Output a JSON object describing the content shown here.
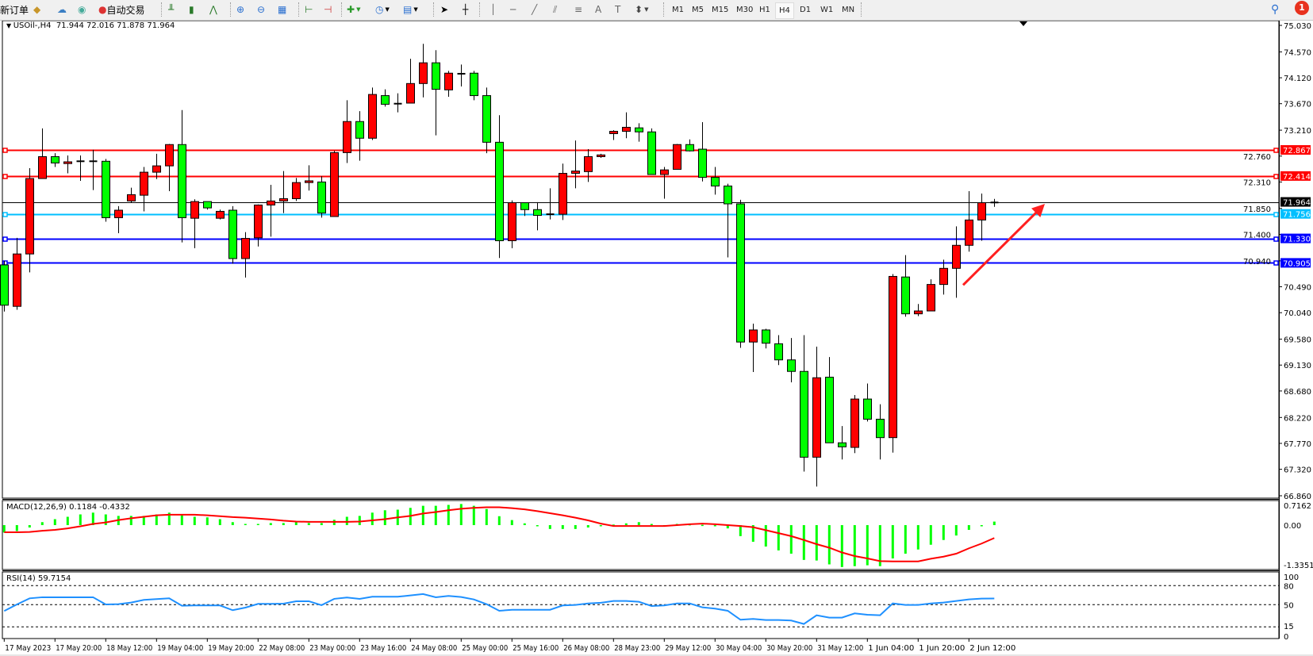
{
  "toolbar": {
    "new_order": "新订单",
    "auto_trading": "自动交易",
    "timeframes": [
      "M1",
      "M5",
      "M15",
      "M30",
      "H1",
      "H4",
      "D1",
      "W1",
      "MN"
    ],
    "active_timeframe": "H4",
    "notification_count": "1",
    "icons": [
      "metaeditor-icon",
      "market-watch-icon",
      "signals-icon",
      "bar-chart-icon",
      "candlestick-icon",
      "line-chart-icon",
      "zoom-in-icon",
      "zoom-out-icon",
      "tile-windows-icon",
      "auto-scroll-icon",
      "chart-shift-icon",
      "new-chart-icon",
      "periods-icon",
      "templates-icon",
      "cursor-icon",
      "crosshair-icon",
      "vertical-line-icon",
      "horizontal-line-icon",
      "trendline-icon",
      "fibonacci-icon",
      "fibo-fan-icon",
      "text-icon",
      "text-label-icon",
      "arrows-icon",
      "search-icon",
      "notification-icon"
    ]
  },
  "chart": {
    "header": "USOil-,H4  71.944 72.016 71.878 71.964",
    "macd_label": "MACD(12,26,9) 0.1184 -0.4332",
    "rsi_label": "RSI(14) 59.7154"
  },
  "chart_data": {
    "type": "candlestick",
    "symbol": "USOil-",
    "timeframe": "H4",
    "colors": {
      "up": "#FF0000",
      "down": "#00FF00",
      "macd_hist": "#00FF00",
      "macd_signal": "#FF0000",
      "rsi": "#1E90FF"
    },
    "price_ticks": [
      "75.030",
      "74.570",
      "74.120",
      "73.670",
      "73.210",
      "72.760",
      "72.310",
      "71.850",
      "71.400",
      "70.940",
      "70.490",
      "70.040",
      "69.580",
      "69.130",
      "68.680",
      "68.220",
      "67.770",
      "67.320",
      "66.860"
    ],
    "ylim": [
      66.86,
      75.03
    ],
    "time_labels": [
      "17 May 2023",
      "17 May 20:00",
      "18 May 12:00",
      "19 May 04:00",
      "19 May 20:00",
      "22 May 08:00",
      "23 May 00:00",
      "23 May 16:00",
      "24 May 08:00",
      "25 May 00:00",
      "25 May 16:00",
      "26 May 08:00",
      "28 May 23:00",
      "29 May 12:00",
      "30 May 04:00",
      "30 May 20:00",
      "31 May 12:00",
      "1 Jun 04:00",
      "1 Jun 20:00",
      "2 Jun 12:00"
    ],
    "levels": [
      {
        "price": "72.867",
        "color": "#FF0000"
      },
      {
        "price": "72.414",
        "color": "#FF0000"
      },
      {
        "price": "71.964",
        "color": "#000000"
      },
      {
        "price": "71.756",
        "color": "#00BFFF"
      },
      {
        "price": "71.330",
        "color": "#0000FF"
      },
      {
        "price": "70.905",
        "color": "#0000FF"
      }
    ],
    "ohlc": [
      [
        70.87,
        70.94,
        70.06,
        70.17
      ],
      [
        70.15,
        71.34,
        70.09,
        71.06
      ],
      [
        71.06,
        72.55,
        70.74,
        72.37
      ],
      [
        72.37,
        73.24,
        72.37,
        72.75
      ],
      [
        72.75,
        72.81,
        72.57,
        72.64
      ],
      [
        72.63,
        72.77,
        72.46,
        72.66
      ],
      [
        72.67,
        72.77,
        72.33,
        72.67
      ],
      [
        72.67,
        72.87,
        72.17,
        72.67
      ],
      [
        72.67,
        72.71,
        71.62,
        71.69
      ],
      [
        71.69,
        71.89,
        71.42,
        71.82
      ],
      [
        71.98,
        72.21,
        71.95,
        72.09
      ],
      [
        72.08,
        72.57,
        71.8,
        72.48
      ],
      [
        72.48,
        72.8,
        72.36,
        72.59
      ],
      [
        72.59,
        72.97,
        72.15,
        72.96
      ],
      [
        72.96,
        73.56,
        71.26,
        71.69
      ],
      [
        71.68,
        72.01,
        71.16,
        71.97
      ],
      [
        71.97,
        71.97,
        71.83,
        71.86
      ],
      [
        71.68,
        71.83,
        71.66,
        71.8
      ],
      [
        71.82,
        71.89,
        70.89,
        70.98
      ],
      [
        70.98,
        71.44,
        70.65,
        71.33
      ],
      [
        71.34,
        71.92,
        71.19,
        71.91
      ],
      [
        71.91,
        72.26,
        71.36,
        71.98
      ],
      [
        71.98,
        72.5,
        71.77,
        72.02
      ],
      [
        72.02,
        72.38,
        71.98,
        72.3
      ],
      [
        72.3,
        72.6,
        72.16,
        72.33
      ],
      [
        72.31,
        72.41,
        71.69,
        71.77
      ],
      [
        71.71,
        72.85,
        71.71,
        72.82
      ],
      [
        72.82,
        73.73,
        72.64,
        73.36
      ],
      [
        73.36,
        73.54,
        72.68,
        73.07
      ],
      [
        73.07,
        73.95,
        73.04,
        73.83
      ],
      [
        73.81,
        73.92,
        73.62,
        73.66
      ],
      [
        73.67,
        73.85,
        73.52,
        73.67
      ],
      [
        73.68,
        74.45,
        73.68,
        74.02
      ],
      [
        74.02,
        74.71,
        73.78,
        74.38
      ],
      [
        74.38,
        74.6,
        73.12,
        73.92
      ],
      [
        73.91,
        74.24,
        73.79,
        74.2
      ],
      [
        74.19,
        74.35,
        73.97,
        74.19
      ],
      [
        74.2,
        74.24,
        73.73,
        73.81
      ],
      [
        73.81,
        73.95,
        72.81,
        73.0
      ],
      [
        73.0,
        73.47,
        70.99,
        71.29
      ],
      [
        71.29,
        71.99,
        71.16,
        71.95
      ],
      [
        71.95,
        71.95,
        71.72,
        71.83
      ],
      [
        71.83,
        71.96,
        71.47,
        71.73
      ],
      [
        71.75,
        72.2,
        71.66,
        71.75
      ],
      [
        71.75,
        72.63,
        71.65,
        72.46
      ],
      [
        72.46,
        73.03,
        72.2,
        72.5
      ],
      [
        72.49,
        72.88,
        72.31,
        72.75
      ],
      [
        72.75,
        72.8,
        72.73,
        72.78
      ],
      [
        73.15,
        73.21,
        73.04,
        73.19
      ],
      [
        73.19,
        73.52,
        73.07,
        73.26
      ],
      [
        73.25,
        73.33,
        73.01,
        73.18
      ],
      [
        73.18,
        73.24,
        72.44,
        72.44
      ],
      [
        72.44,
        72.57,
        72.02,
        72.52
      ],
      [
        72.53,
        72.97,
        72.53,
        72.96
      ],
      [
        72.96,
        73.05,
        72.84,
        72.85
      ],
      [
        72.88,
        73.35,
        72.32,
        72.39
      ],
      [
        72.39,
        72.57,
        72.09,
        72.24
      ],
      [
        72.24,
        72.28,
        71.0,
        71.93
      ],
      [
        71.93,
        72.0,
        69.43,
        69.53
      ],
      [
        69.53,
        69.85,
        69.01,
        69.74
      ],
      [
        69.74,
        69.76,
        69.42,
        69.51
      ],
      [
        69.5,
        69.65,
        69.13,
        69.22
      ],
      [
        69.22,
        69.6,
        68.83,
        69.02
      ],
      [
        69.02,
        69.65,
        67.28,
        67.53
      ],
      [
        67.53,
        69.45,
        67.02,
        68.91
      ],
      [
        68.92,
        69.27,
        67.78,
        67.78
      ],
      [
        67.78,
        68.07,
        67.49,
        67.71
      ],
      [
        67.7,
        68.61,
        67.6,
        68.54
      ],
      [
        68.54,
        68.81,
        68.15,
        68.19
      ],
      [
        68.19,
        68.45,
        67.49,
        67.87
      ],
      [
        67.87,
        70.71,
        67.61,
        70.67
      ],
      [
        70.66,
        71.04,
        69.97,
        70.02
      ],
      [
        70.02,
        70.19,
        69.98,
        70.07
      ],
      [
        70.07,
        70.62,
        70.07,
        70.53
      ],
      [
        70.53,
        70.96,
        70.355,
        70.81
      ],
      [
        70.81,
        71.54,
        70.3,
        71.21
      ],
      [
        71.21,
        72.15,
        71.1,
        71.65
      ],
      [
        71.65,
        72.11,
        71.29,
        71.95
      ],
      [
        71.944,
        72.016,
        71.878,
        71.964
      ]
    ],
    "macd": {
      "ticks": [
        "0.7162",
        "0.00",
        "-1.3351"
      ],
      "ylim": [
        -1.3351,
        0.7162
      ],
      "histogram": [
        -0.25,
        -0.2,
        -0.08,
        0.1,
        0.2,
        0.28,
        0.36,
        0.42,
        0.36,
        0.31,
        0.31,
        0.31,
        0.36,
        0.42,
        0.34,
        0.28,
        0.26,
        0.2,
        0.1,
        0.04,
        0.04,
        0.07,
        0.07,
        0.1,
        0.07,
        0.07,
        0.18,
        0.28,
        0.31,
        0.42,
        0.5,
        0.52,
        0.58,
        0.65,
        0.65,
        0.68,
        0.71,
        0.65,
        0.54,
        0.3,
        0.17,
        0.06,
        -0.04,
        -0.13,
        -0.13,
        -0.13,
        -0.08,
        -0.04,
        0.02,
        0.06,
        0.1,
        0.04,
        0,
        0.04,
        0.03,
        0.01,
        -0.03,
        -0.11,
        -0.37,
        -0.56,
        -0.72,
        -0.85,
        -0.96,
        -1.17,
        -1.19,
        -1.32,
        -1.41,
        -1.38,
        -1.35,
        -1.38,
        -1.12,
        -0.96,
        -0.82,
        -0.66,
        -0.5,
        -0.35,
        -0.16,
        -0.01,
        0.1184
      ],
      "signal": [
        -0.24,
        -0.24,
        -0.23,
        -0.19,
        -0.16,
        -0.11,
        -0.04,
        0.04,
        0.09,
        0.17,
        0.23,
        0.28,
        0.33,
        0.35,
        0.35,
        0.35,
        0.33,
        0.3,
        0.27,
        0.25,
        0.22,
        0.19,
        0.15,
        0.12,
        0.11,
        0.11,
        0.11,
        0.11,
        0.12,
        0.16,
        0.2,
        0.26,
        0.31,
        0.39,
        0.44,
        0.5,
        0.55,
        0.58,
        0.6,
        0.6,
        0.57,
        0.53,
        0.47,
        0.4,
        0.33,
        0.25,
        0.16,
        0.05,
        -0.03,
        -0.03,
        -0.03,
        -0.03,
        -0.03,
        0.0,
        0.03,
        0.05,
        0.03,
        0.0,
        -0.03,
        -0.07,
        -0.17,
        -0.27,
        -0.37,
        -0.5,
        -0.64,
        -0.76,
        -0.92,
        -1.04,
        -1.12,
        -1.21,
        -1.22,
        -1.22,
        -1.22,
        -1.13,
        -1.06,
        -0.96,
        -0.78,
        -0.62,
        -0.4332
      ]
    },
    "rsi": {
      "ticks": [
        "100",
        "80",
        "50",
        "15",
        "0"
      ],
      "levels": [
        80,
        50,
        15
      ],
      "ylim": [
        0,
        100
      ],
      "values": [
        40,
        50.4,
        60,
        61.7,
        61.7,
        61.7,
        61.7,
        61.7,
        50.4,
        50.8,
        53.3,
        57.5,
        58.8,
        60,
        48.3,
        48.8,
        48.8,
        48.8,
        41.3,
        45.4,
        51.3,
        51.3,
        51.7,
        55.4,
        55.4,
        49.2,
        59.2,
        61.3,
        59.2,
        62.5,
        62.5,
        62.5,
        64.6,
        66.7,
        61.7,
        63.8,
        62.1,
        58.3,
        50.8,
        40.4,
        42,
        42,
        42,
        42,
        48.8,
        49.6,
        52,
        53,
        55.8,
        55.8,
        54.6,
        47.9,
        48.8,
        52,
        52,
        45.8,
        43.8,
        40.4,
        26.3,
        27.5,
        25.8,
        25.8,
        25,
        19.6,
        33.3,
        29.6,
        29.6,
        36.3,
        34.2,
        33.3,
        52,
        49.6,
        49.6,
        52,
        53.3,
        55.8,
        58.3,
        59.6,
        59.7154
      ]
    },
    "annotation": {
      "type": "arrow",
      "color": "#FF2020",
      "from_price": 70.52,
      "to_price": 71.93
    }
  }
}
